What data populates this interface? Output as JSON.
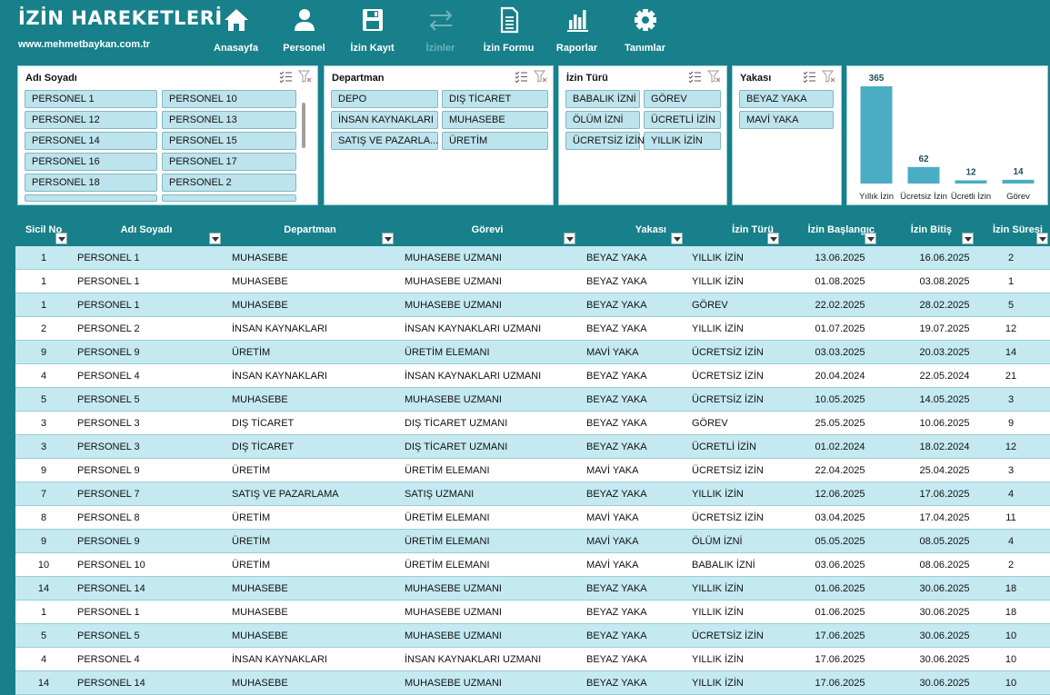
{
  "brand": {
    "title": "İZİN HAREKETLERİ",
    "url": "www.mehmetbaykan.com.tr"
  },
  "nav": [
    {
      "label": "Anasayfa",
      "icon": "home-icon"
    },
    {
      "label": "Personel",
      "icon": "user-icon"
    },
    {
      "label": "İzin Kayıt",
      "icon": "save-icon"
    },
    {
      "label": "İzinler",
      "icon": "swap-arrows-icon",
      "active": true
    },
    {
      "label": "İzin Formu",
      "icon": "document-icon"
    },
    {
      "label": "Raporlar",
      "icon": "bar-chart-icon"
    },
    {
      "label": "Tanımlar",
      "icon": "gear-icon"
    }
  ],
  "slicers": {
    "adi_soyadi": {
      "title": "Adı Soyadı",
      "items": [
        "PERSONEL 1",
        "PERSONEL 10",
        "PERSONEL 12",
        "PERSONEL 13",
        "PERSONEL 14",
        "PERSONEL 15",
        "PERSONEL 16",
        "PERSONEL 17",
        "PERSONEL 18",
        "PERSONEL 2"
      ]
    },
    "departman": {
      "title": "Departman",
      "items": [
        "DEPO",
        "DIŞ TİCARET",
        "İNSAN KAYNAKLARI",
        "MUHASEBE",
        "SATIŞ VE PAZARLA...",
        "ÜRETİM"
      ]
    },
    "izin_turu": {
      "title": "İzin Türü",
      "items": [
        "BABALIK İZNİ",
        "GÖREV",
        "ÖLÜM İZNİ",
        "ÜCRETLİ İZİN",
        "ÜCRETSİZ İZİN",
        "YILLIK İZİN"
      ]
    },
    "yakasi": {
      "title": "Yakası",
      "items": [
        "BEYAZ YAKA",
        "MAVİ YAKA"
      ]
    }
  },
  "chart_data": {
    "type": "bar",
    "categories": [
      "Yıllık İzin",
      "Ücretsiz İzin",
      "Ücretli İzin",
      "Görev"
    ],
    "values": [
      365,
      62,
      12,
      14
    ],
    "ylim": [
      0,
      365
    ],
    "grid": false,
    "legend": "none",
    "color": "#4bacc6"
  },
  "table": {
    "headers": [
      "Sicil No",
      "Adı Soyadı",
      "Departman",
      "Görevi",
      "Yakası",
      "İzin Türü",
      "İzin Başlangıç",
      "İzin Bitiş",
      "İzin Süresi"
    ],
    "rows": [
      [
        "1",
        "PERSONEL 1",
        "MUHASEBE",
        "MUHASEBE UZMANI",
        "BEYAZ YAKA",
        "YILLIK İZİN",
        "13.06.2025",
        "16.06.2025",
        "2"
      ],
      [
        "1",
        "PERSONEL 1",
        "MUHASEBE",
        "MUHASEBE UZMANI",
        "BEYAZ YAKA",
        "YILLIK İZİN",
        "01.08.2025",
        "03.08.2025",
        "1"
      ],
      [
        "1",
        "PERSONEL 1",
        "MUHASEBE",
        "MUHASEBE UZMANI",
        "BEYAZ YAKA",
        "GÖREV",
        "22.02.2025",
        "28.02.2025",
        "5"
      ],
      [
        "2",
        "PERSONEL 2",
        "İNSAN KAYNAKLARI",
        "İNSAN KAYNAKLARI UZMANI",
        "BEYAZ YAKA",
        "YILLIK İZİN",
        "01.07.2025",
        "19.07.2025",
        "12"
      ],
      [
        "9",
        "PERSONEL 9",
        "ÜRETİM",
        "ÜRETİM ELEMANI",
        "MAVİ YAKA",
        "ÜCRETSİZ İZİN",
        "03.03.2025",
        "20.03.2025",
        "14"
      ],
      [
        "4",
        "PERSONEL 4",
        "İNSAN KAYNAKLARI",
        "İNSAN KAYNAKLARI UZMANI",
        "BEYAZ YAKA",
        "ÜCRETSİZ İZİN",
        "20.04.2024",
        "22.05.2024",
        "21"
      ],
      [
        "5",
        "PERSONEL 5",
        "MUHASEBE",
        "MUHASEBE UZMANI",
        "BEYAZ YAKA",
        "ÜCRETSİZ İZİN",
        "10.05.2025",
        "14.05.2025",
        "3"
      ],
      [
        "3",
        "PERSONEL 3",
        "DIŞ TİCARET",
        "DIŞ TİCARET UZMANI",
        "BEYAZ YAKA",
        "GÖREV",
        "25.05.2025",
        "10.06.2025",
        "9"
      ],
      [
        "3",
        "PERSONEL 3",
        "DIŞ TİCARET",
        "DIŞ TİCARET UZMANI",
        "BEYAZ YAKA",
        "ÜCRETLİ İZİN",
        "01.02.2024",
        "18.02.2024",
        "12"
      ],
      [
        "9",
        "PERSONEL 9",
        "ÜRETİM",
        "ÜRETİM ELEMANI",
        "MAVİ YAKA",
        "ÜCRETSİZ İZİN",
        "22.04.2025",
        "25.04.2025",
        "3"
      ],
      [
        "7",
        "PERSONEL 7",
        "SATIŞ VE PAZARLAMA",
        "SATIŞ UZMANI",
        "BEYAZ YAKA",
        "YILLIK İZİN",
        "12.06.2025",
        "17.06.2025",
        "4"
      ],
      [
        "8",
        "PERSONEL 8",
        "ÜRETİM",
        "ÜRETİM ELEMANI",
        "MAVİ YAKA",
        "ÜCRETSİZ İZİN",
        "03.04.2025",
        "17.04.2025",
        "11"
      ],
      [
        "9",
        "PERSONEL 9",
        "ÜRETİM",
        "ÜRETİM ELEMANI",
        "MAVİ YAKA",
        "ÖLÜM İZNİ",
        "05.05.2025",
        "08.05.2025",
        "4"
      ],
      [
        "10",
        "PERSONEL 10",
        "ÜRETİM",
        "ÜRETİM ELEMANI",
        "MAVİ YAKA",
        "BABALIK İZNİ",
        "03.06.2025",
        "08.06.2025",
        "2"
      ],
      [
        "14",
        "PERSONEL 14",
        "MUHASEBE",
        "MUHASEBE UZMANI",
        "BEYAZ YAKA",
        "YILLIK İZİN",
        "01.06.2025",
        "30.06.2025",
        "18"
      ],
      [
        "1",
        "PERSONEL 1",
        "MUHASEBE",
        "MUHASEBE UZMANI",
        "BEYAZ YAKA",
        "YILLIK İZİN",
        "01.06.2025",
        "30.06.2025",
        "18"
      ],
      [
        "5",
        "PERSONEL 5",
        "MUHASEBE",
        "MUHASEBE UZMANI",
        "BEYAZ YAKA",
        "ÜCRETSİZ İZİN",
        "17.06.2025",
        "30.06.2025",
        "10"
      ],
      [
        "4",
        "PERSONEL 4",
        "İNSAN KAYNAKLARI",
        "İNSAN KAYNAKLARI UZMANI",
        "BEYAZ YAKA",
        "YILLIK İZİN",
        "17.06.2025",
        "30.06.2025",
        "10"
      ],
      [
        "14",
        "PERSONEL 14",
        "MUHASEBE",
        "MUHASEBE UZMANI",
        "BEYAZ YAKA",
        "YILLIK İZİN",
        "17.06.2025",
        "30.06.2025",
        "10"
      ]
    ]
  }
}
